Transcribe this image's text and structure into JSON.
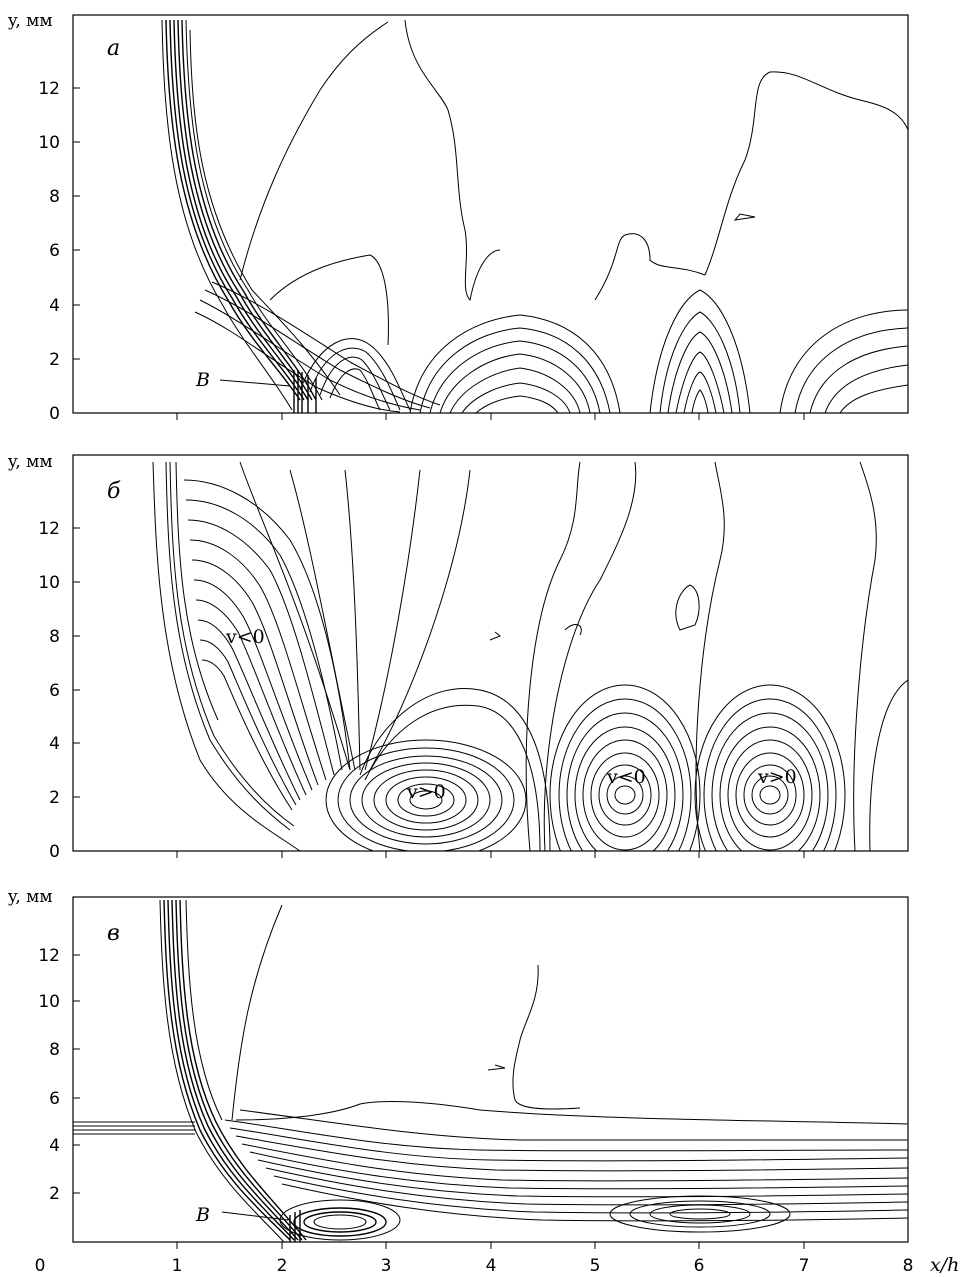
{
  "chart_data": [
    {
      "type": "contour",
      "panel_label": "а",
      "ylabel": "y, мм",
      "xlabel": "",
      "xlim": [
        0,
        8
      ],
      "ylim": [
        0,
        14.5
      ],
      "x_ticks": [
        1,
        2,
        3,
        4,
        5,
        6,
        7,
        8
      ],
      "y_ticks": [
        0,
        2,
        4,
        6,
        8,
        10,
        12
      ],
      "annotations": [
        {
          "text": "B",
          "x": 2.1,
          "y": 1.1
        }
      ]
    },
    {
      "type": "contour",
      "panel_label": "б",
      "ylabel": "y, мм",
      "xlabel": "",
      "xlim": [
        0,
        8
      ],
      "ylim": [
        0,
        14.5
      ],
      "x_ticks": [
        1,
        2,
        3,
        4,
        5,
        6,
        7,
        8
      ],
      "y_ticks": [
        0,
        2,
        4,
        6,
        8,
        10,
        12
      ],
      "annotations": [
        {
          "text": "v<0",
          "x": 1.65,
          "y": 7.8
        },
        {
          "text": "v>0",
          "x": 3.55,
          "y": 2.2
        },
        {
          "text": "v<0",
          "x": 5.35,
          "y": 2.7
        },
        {
          "text": "v>0",
          "x": 6.8,
          "y": 2.7
        }
      ]
    },
    {
      "type": "contour",
      "panel_label": "в",
      "ylabel": "y, мм",
      "xlabel": "x/h",
      "xlim": [
        0,
        8
      ],
      "ylim": [
        0,
        14.5
      ],
      "x_ticks": [
        0,
        1,
        2,
        3,
        4,
        5,
        6,
        7,
        8
      ],
      "y_ticks": [
        2,
        4,
        6,
        8,
        10,
        12
      ],
      "annotations": [
        {
          "text": "B",
          "x": 2.1,
          "y": 1.1
        }
      ]
    }
  ]
}
